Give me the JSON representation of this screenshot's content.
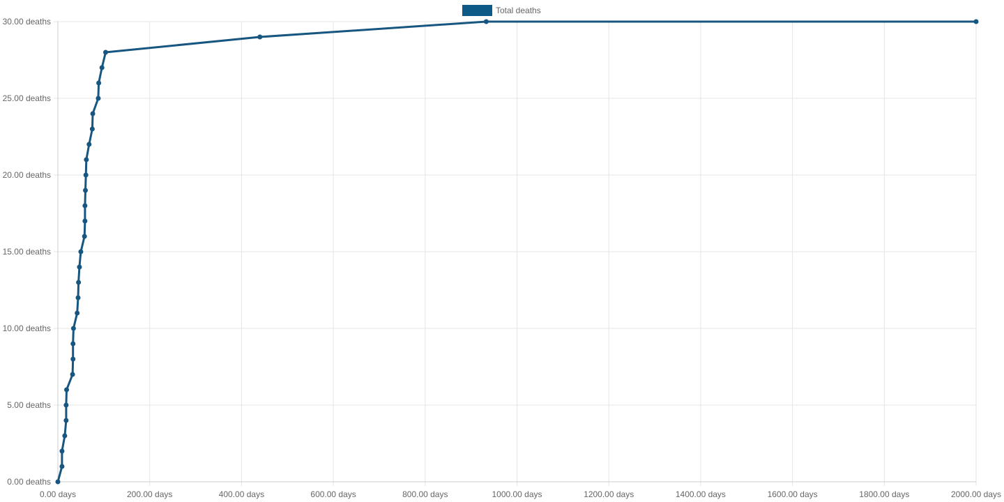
{
  "chart_data": {
    "type": "line",
    "legend": {
      "position": "top-center",
      "label": "Total deaths",
      "swatch_color": "#0e5a87"
    },
    "series": [
      {
        "name": "Total deaths",
        "color": "#175680",
        "x": [
          0,
          9,
          9,
          15,
          18,
          18,
          19,
          32,
          33,
          33,
          34,
          42,
          44,
          45,
          47,
          50,
          58,
          59,
          59,
          60,
          61,
          62,
          68,
          75,
          76,
          88,
          89,
          96,
          104,
          440,
          933,
          2000
        ],
        "y": [
          0,
          1,
          2,
          3,
          4,
          5,
          6,
          7,
          8,
          9,
          10,
          11,
          12,
          13,
          14,
          15,
          16,
          17,
          18,
          19,
          20,
          21,
          22,
          23,
          24,
          25,
          26,
          27,
          28,
          29,
          30,
          30
        ]
      }
    ],
    "x_axis": {
      "min": 0,
      "max": 2000,
      "step": 200,
      "tick_labels": [
        "0.00 days",
        "200.00 days",
        "400.00 days",
        "600.00 days",
        "800.00 days",
        "1000.00 days",
        "1200.00 days",
        "1400.00 days",
        "1600.00 days",
        "1800.00 days",
        "2000.00 days"
      ]
    },
    "y_axis": {
      "min": 0,
      "max": 30,
      "step": 5,
      "tick_labels": [
        "0.00 deaths",
        "5.00 deaths",
        "10.00 deaths",
        "15.00 deaths",
        "20.00 deaths",
        "25.00 deaths",
        "30.00 deaths"
      ]
    },
    "grid": true
  }
}
